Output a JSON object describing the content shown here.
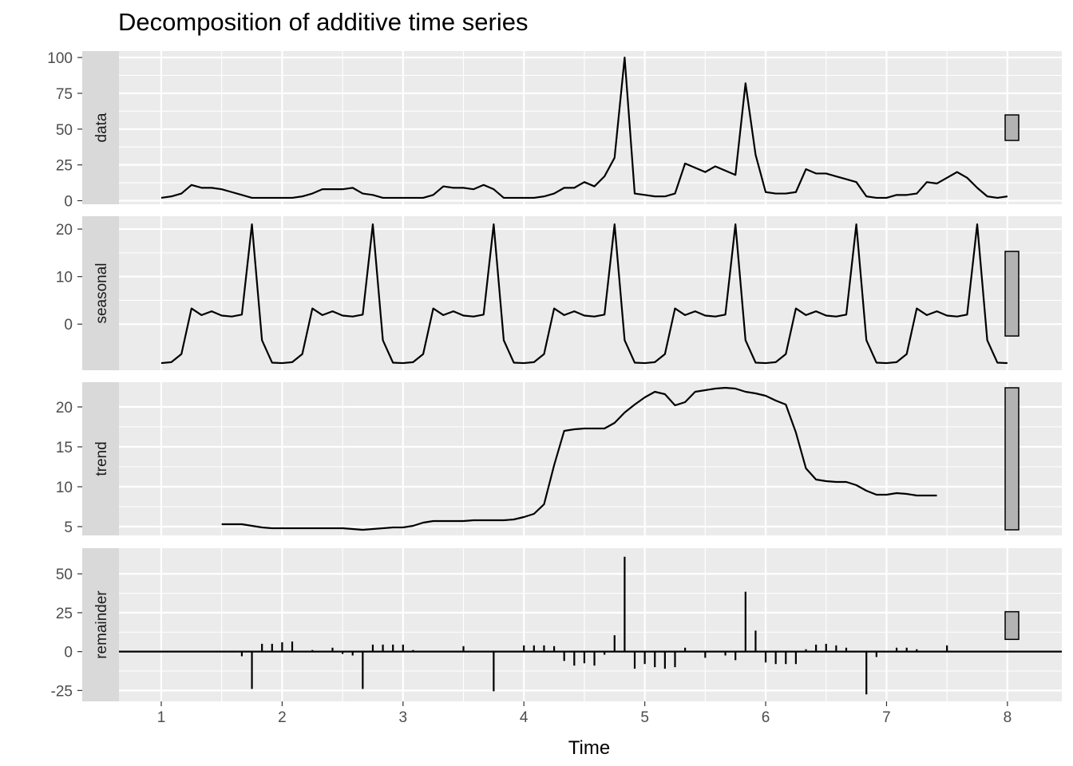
{
  "chart_data": {
    "type": "line",
    "title": "Decomposition of additive time series",
    "xlabel": "Time",
    "x_ticks": [
      1,
      2,
      3,
      4,
      5,
      6,
      7,
      8
    ],
    "x_range": [
      0.65,
      8.45
    ],
    "frequency": 12,
    "start": 1,
    "colors": {
      "panel_bg": "#ebebeb",
      "strip_bg": "#d9d9d9",
      "grid": "#ffffff",
      "line": "#000000",
      "range_bar": "#b3b3b3"
    },
    "panels": [
      {
        "name": "data",
        "style": "line",
        "ylim": [
          -2.5,
          104.5
        ],
        "y_ticks": [
          0,
          25,
          50,
          75,
          100
        ],
        "y_tick_labels": [
          "0",
          "25",
          "50",
          "75",
          "100"
        ],
        "values": [
          2,
          3,
          5,
          11,
          9,
          9,
          8,
          6,
          4,
          2,
          2,
          2,
          2,
          2,
          3,
          5,
          8,
          8,
          8,
          9,
          5,
          4,
          2,
          2,
          2,
          2,
          2,
          4,
          10,
          9,
          9,
          8,
          11,
          8,
          2,
          2,
          2,
          2,
          3,
          5,
          9,
          9,
          13,
          10,
          17,
          30,
          100,
          5,
          4,
          3,
          3,
          5,
          26,
          23,
          20,
          24,
          21,
          18,
          82,
          32,
          6,
          5,
          5,
          6,
          22,
          19,
          19,
          17,
          15,
          13,
          3,
          2,
          2,
          4,
          4,
          5,
          13,
          12,
          16,
          20,
          16,
          9,
          3,
          2,
          3
        ]
      },
      {
        "name": "seasonal",
        "style": "line",
        "ylim": [
          -9.7,
          22.7
        ],
        "y_ticks": [
          0,
          10,
          20
        ],
        "y_tick_labels": [
          "0",
          "10",
          "20"
        ],
        "values": [
          -8.2,
          -8.0,
          -6.3,
          3.3,
          1.9,
          2.7,
          1.8,
          1.6,
          2.0,
          21.0,
          -3.4,
          -8.1,
          -8.2,
          -8.0,
          -6.3,
          3.3,
          1.9,
          2.7,
          1.8,
          1.6,
          2.0,
          21.0,
          -3.4,
          -8.1,
          -8.2,
          -8.0,
          -6.3,
          3.3,
          1.9,
          2.7,
          1.8,
          1.6,
          2.0,
          21.0,
          -3.4,
          -8.1,
          -8.2,
          -8.0,
          -6.3,
          3.3,
          1.9,
          2.7,
          1.8,
          1.6,
          2.0,
          21.0,
          -3.4,
          -8.1,
          -8.2,
          -8.0,
          -6.3,
          3.3,
          1.9,
          2.7,
          1.8,
          1.6,
          2.0,
          21.0,
          -3.4,
          -8.1,
          -8.2,
          -8.0,
          -6.3,
          3.3,
          1.9,
          2.7,
          1.8,
          1.6,
          2.0,
          21.0,
          -3.4,
          -8.1,
          -8.2,
          -8.0,
          -6.3,
          3.3,
          1.9,
          2.7,
          1.8,
          1.6,
          2.0,
          21.0,
          -3.4,
          -8.1,
          -8.2
        ]
      },
      {
        "name": "trend",
        "style": "line",
        "ylim": [
          3.9,
          23.1
        ],
        "y_ticks": [
          5,
          10,
          15,
          20
        ],
        "y_tick_labels": [
          "5",
          "10",
          "15",
          "20"
        ],
        "values": [
          null,
          null,
          null,
          null,
          null,
          null,
          5.3,
          5.3,
          5.3,
          5.1,
          4.9,
          4.8,
          4.8,
          4.8,
          4.8,
          4.8,
          4.8,
          4.8,
          4.8,
          4.7,
          4.6,
          4.7,
          4.8,
          4.9,
          4.9,
          5.1,
          5.5,
          5.7,
          5.7,
          5.7,
          5.7,
          5.8,
          5.8,
          5.8,
          5.8,
          5.9,
          6.2,
          6.6,
          7.8,
          12.7,
          17.0,
          17.2,
          17.3,
          17.3,
          17.3,
          18.0,
          19.3,
          20.3,
          21.2,
          21.9,
          21.6,
          20.2,
          20.6,
          21.9,
          22.1,
          22.3,
          22.4,
          22.3,
          21.9,
          21.7,
          21.4,
          20.8,
          20.3,
          16.8,
          12.3,
          10.9,
          10.7,
          10.6,
          10.6,
          10.2,
          9.5,
          9.0,
          9.0,
          9.2,
          9.1,
          8.9,
          8.9,
          8.9,
          null,
          null,
          null,
          null,
          null,
          null,
          null
        ]
      },
      {
        "name": "remainder",
        "style": "bar",
        "baseline": 0,
        "ylim": [
          -32,
          66.5
        ],
        "y_ticks": [
          -25,
          0,
          25,
          50
        ],
        "y_tick_labels": [
          "-25",
          "0",
          "25",
          "50"
        ],
        "values": [
          null,
          null,
          null,
          null,
          null,
          null,
          0.5,
          -0.5,
          -3,
          -24,
          5,
          5,
          6,
          6.5,
          0.2,
          1,
          -0.3,
          2.5,
          -1.5,
          -2.5,
          -24,
          4.5,
          4.5,
          4.5,
          4.5,
          1,
          0.3,
          0.5,
          0.3,
          0.5,
          3.5,
          0.4,
          0.3,
          -25.5,
          0.2,
          0.3,
          4,
          4,
          4,
          3.5,
          -6,
          -9,
          -7.5,
          -9,
          -2,
          10.5,
          61,
          -11,
          -8,
          -10,
          -11,
          -10,
          2.5,
          0.3,
          -4,
          0.3,
          -2.5,
          -5.5,
          38.5,
          13.5,
          -7,
          -8,
          -8,
          -8,
          1.5,
          4.5,
          5,
          4,
          2.5,
          0.3,
          -27.5,
          -3.5,
          0.5,
          2.5,
          2.5,
          1.5,
          0.3,
          0.3,
          4,
          null,
          null,
          null,
          null,
          null,
          null
        ]
      }
    ]
  }
}
